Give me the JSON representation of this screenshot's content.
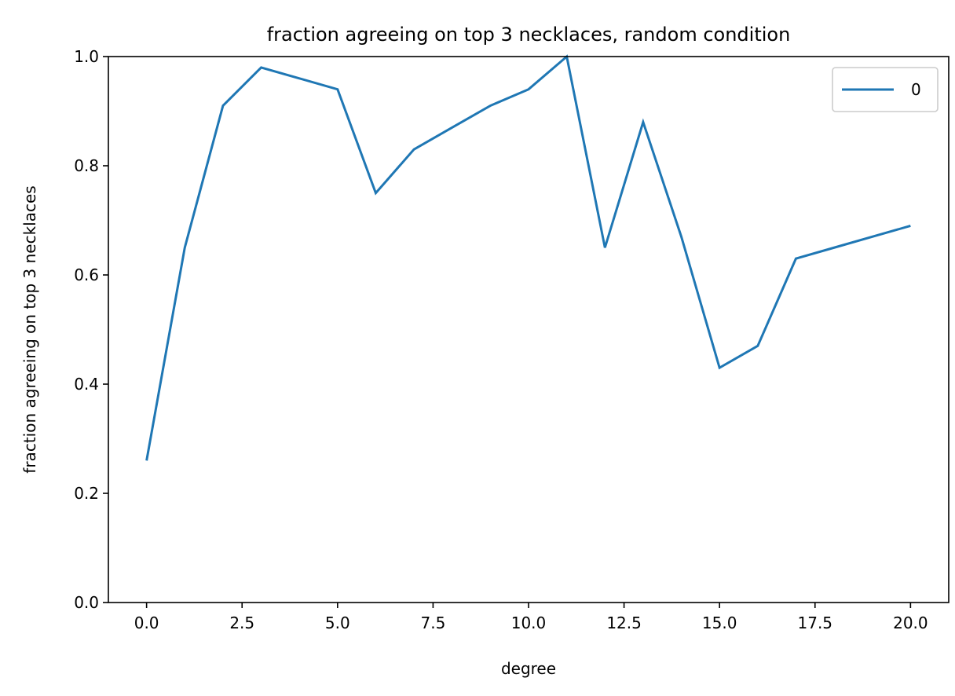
{
  "chart_data": {
    "type": "line",
    "title": "fraction agreeing on top 3 necklaces, random condition",
    "xlabel": "degree",
    "ylabel": "fraction agreeing on top 3 necklaces",
    "xlim": [
      -1.0,
      21.0
    ],
    "ylim": [
      0.0,
      1.0
    ],
    "xticks": [
      0.0,
      2.5,
      5.0,
      7.5,
      10.0,
      12.5,
      15.0,
      17.5,
      20.0
    ],
    "xtick_labels": [
      "0.0",
      "2.5",
      "5.0",
      "7.5",
      "10.0",
      "12.5",
      "15.0",
      "17.5",
      "20.0"
    ],
    "yticks": [
      0.0,
      0.2,
      0.4,
      0.6,
      0.8,
      1.0
    ],
    "ytick_labels": [
      "0.0",
      "0.2",
      "0.4",
      "0.6",
      "0.8",
      "1.0"
    ],
    "grid": false,
    "legend_position": "top-right",
    "series": [
      {
        "name": "0",
        "color": "#1f77b4",
        "x": [
          0,
          1,
          2,
          3,
          4,
          5,
          6,
          7,
          8,
          9,
          10,
          11,
          12,
          13,
          14,
          15,
          16,
          17,
          18,
          19,
          20
        ],
        "y": [
          0.26,
          0.65,
          0.91,
          0.98,
          0.96,
          0.94,
          0.75,
          0.83,
          0.87,
          0.91,
          0.94,
          1.0,
          0.65,
          0.88,
          0.67,
          0.43,
          0.47,
          0.63,
          0.65,
          0.67,
          0.69
        ]
      }
    ]
  }
}
